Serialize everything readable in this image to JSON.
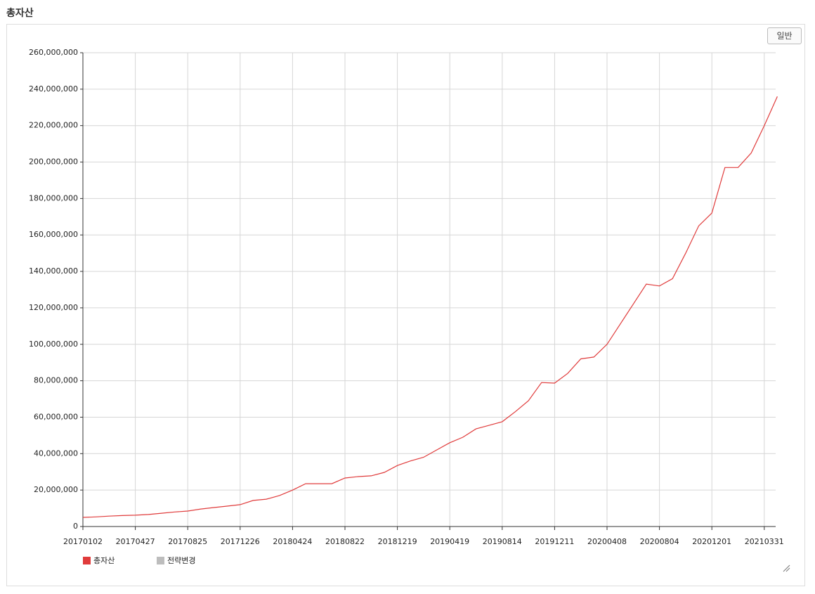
{
  "header": {
    "title": "총자산"
  },
  "button": "일반",
  "chart_data": {
    "type": "line",
    "categories": [
      "20170102",
      null,
      null,
      null,
      "20170427",
      null,
      null,
      null,
      "20170825",
      null,
      null,
      null,
      "20171226",
      null,
      null,
      null,
      "20180424",
      null,
      null,
      null,
      "20180822",
      null,
      null,
      null,
      "20181219",
      null,
      null,
      null,
      "20190419",
      null,
      null,
      null,
      "20190814",
      null,
      null,
      null,
      "20191211",
      null,
      null,
      null,
      "20200408",
      null,
      null,
      null,
      "20200804",
      null,
      null,
      null,
      "20201201",
      null,
      null,
      null,
      "20210331",
      null
    ],
    "series": [
      {
        "name": "총자산",
        "color": "#e03b3b",
        "values": [
          5000000,
          5300000,
          5700000,
          6000000,
          6200000,
          6600000,
          7300000,
          8000000,
          8500000,
          9600000,
          10400000,
          11200000,
          12000000,
          14300000,
          15000000,
          17000000,
          20000000,
          23500000,
          23500000,
          23500000,
          26600000,
          27400000,
          27800000,
          29700000,
          33500000,
          36000000,
          38000000,
          42000000,
          46000000,
          49000000,
          53600000,
          55500000,
          57500000,
          63000000,
          69000000,
          79000000,
          78700000,
          84000000,
          92000000,
          93000000,
          100000000,
          111000000,
          122000000,
          133000000,
          132000000,
          136000000,
          150000000,
          165000000,
          172000000,
          197000000,
          197000000,
          205000000,
          220000000,
          236000000
        ]
      },
      {
        "name": "전략변경",
        "color": "#bdbdbd",
        "values": [
          null,
          null,
          null,
          null,
          null,
          null,
          null,
          null,
          null,
          null,
          null,
          null,
          null,
          null,
          null,
          null,
          null,
          null,
          null,
          null,
          null,
          null,
          null,
          null,
          null,
          null,
          null,
          null,
          null,
          null,
          null,
          null,
          null,
          null,
          null,
          null,
          null,
          null,
          null,
          null,
          null,
          null,
          null,
          null,
          null,
          null,
          null,
          null,
          null,
          null,
          null,
          null,
          null,
          null
        ]
      }
    ],
    "ylim": [
      0,
      260000000
    ],
    "yticks": [
      0,
      {
        "value": 20000000,
        "label": "20,000,000"
      },
      {
        "value": 40000000,
        "label": "40,000,000"
      },
      {
        "value": 60000000,
        "label": "60,000,000"
      },
      {
        "value": 80000000,
        "label": "80,000,000"
      },
      {
        "value": 100000000,
        "label": "100,000,000"
      },
      {
        "value": 120000000,
        "label": "120,000,000"
      },
      {
        "value": 140000000,
        "label": "140,000,000"
      },
      {
        "value": 160000000,
        "label": "160,000,000"
      },
      {
        "value": 180000000,
        "label": "180,000,000"
      },
      {
        "value": 200000000,
        "label": "200,000,000"
      },
      {
        "value": 220000000,
        "label": "220,000,000"
      },
      {
        "value": 240000000,
        "label": "240,000,000"
      },
      {
        "value": 260000000,
        "label": "260,000,000"
      }
    ],
    "grid": true
  }
}
